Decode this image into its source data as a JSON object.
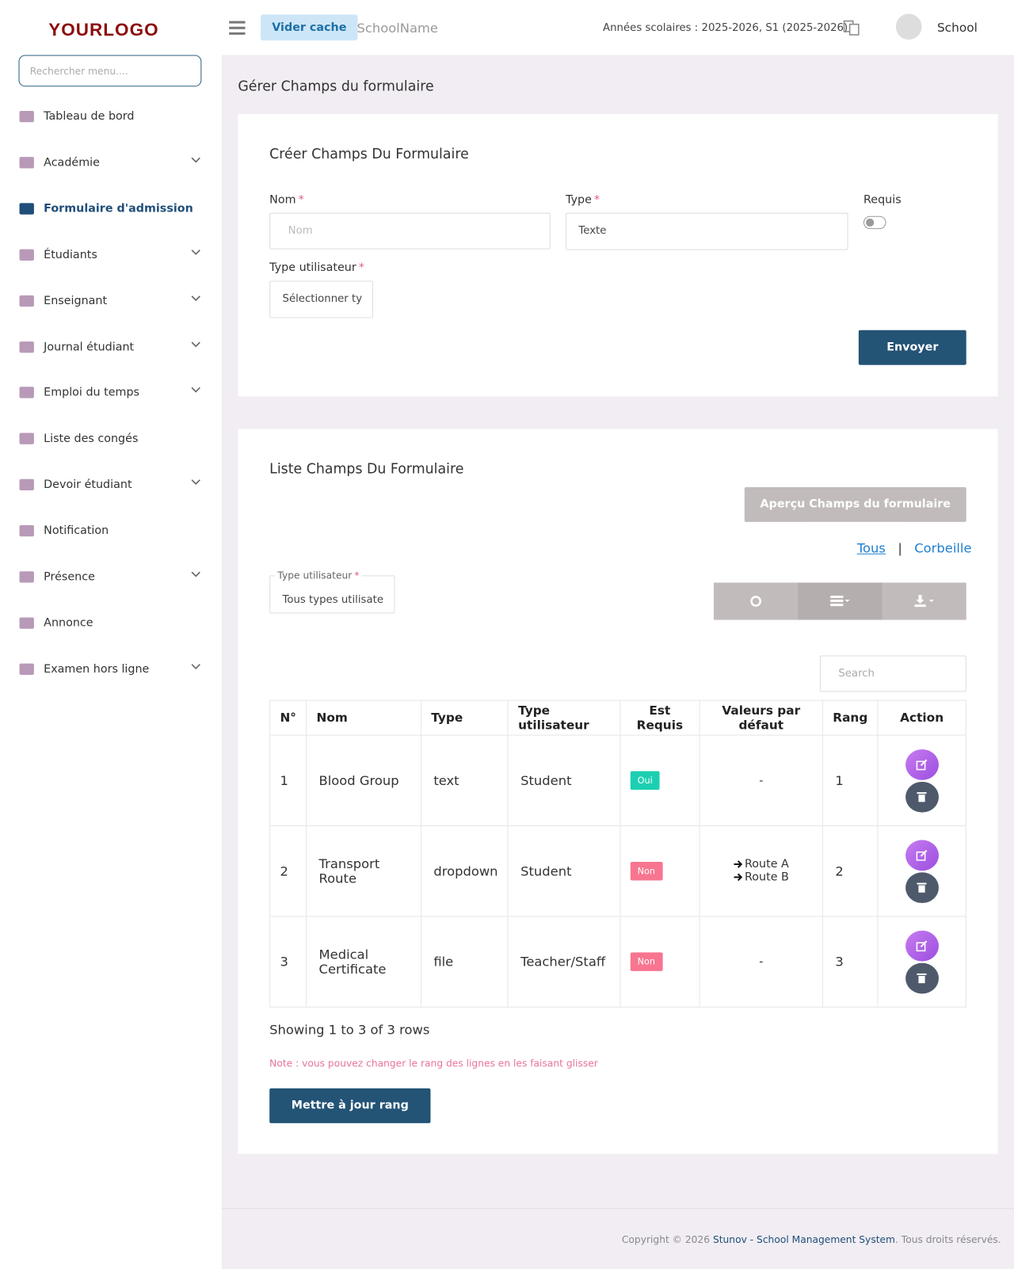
{
  "header": {
    "logo": "YOURLOGO",
    "clear_cache": "Vider cache",
    "school_name": "SchoolName",
    "years": "Années scolaires : 2025-2026, S1 (2025-2026)",
    "user": "School"
  },
  "sidebar": {
    "search_placeholder": "Rechercher menu....",
    "items": [
      {
        "label": "Tableau de bord",
        "submenu": false
      },
      {
        "label": "Académie",
        "submenu": true
      },
      {
        "label": "Formulaire d'admission",
        "submenu": false,
        "active": true
      },
      {
        "label": "Étudiants",
        "submenu": true
      },
      {
        "label": "Enseignant",
        "submenu": true
      },
      {
        "label": "Journal étudiant",
        "submenu": true
      },
      {
        "label": "Emploi du temps",
        "submenu": true
      },
      {
        "label": "Liste des congés",
        "submenu": false
      },
      {
        "label": "Devoir étudiant",
        "submenu": true
      },
      {
        "label": "Notification",
        "submenu": false
      },
      {
        "label": "Présence",
        "submenu": true
      },
      {
        "label": "Annonce",
        "submenu": false
      },
      {
        "label": "Examen hors ligne",
        "submenu": true
      }
    ]
  },
  "page_title": "Gérer Champs du formulaire",
  "required_mark": "*",
  "create_form": {
    "title": "Créer Champs Du Formulaire",
    "name_label": "Nom",
    "name_placeholder": "Nom",
    "type_label": "Type",
    "type_value": "Texte",
    "required_label": "Requis",
    "user_type_label": "Type utilisateur",
    "user_type_value": "Sélectionner ty",
    "submit": "Envoyer"
  },
  "list": {
    "title": "Liste Champs Du Formulaire",
    "preview_button": "Aperçu Champs du formulaire",
    "tabs": [
      "Tous",
      "Corbeille"
    ],
    "tab_separator": "|",
    "filter_label": "Type utilisateur",
    "filter_value": "Tous types utilisate",
    "search_placeholder": "Search",
    "columns": [
      "N°",
      "Nom",
      "Type",
      "Type utilisateur",
      "Est Requis",
      "Valeurs par défaut",
      "Rang",
      "Action"
    ],
    "rows": [
      {
        "no": 1,
        "name": "Blood Group",
        "type": "text",
        "user_type": "Student",
        "required": true,
        "required_label": "Oui",
        "defaults": "-",
        "rank": 1
      },
      {
        "no": 2,
        "name": "Transport Route",
        "type": "dropdown",
        "user_type": "Student",
        "required": false,
        "required_label": "Non",
        "defaults": [
          "Route A",
          "Route B"
        ],
        "rank": 2
      },
      {
        "no": 3,
        "name": "Medical Certificate",
        "type": "file",
        "user_type": "Teacher/Staff",
        "required": false,
        "required_label": "Non",
        "defaults": "-",
        "rank": 3
      }
    ],
    "summary": "Showing 1 to 3 of 3 rows",
    "note": "Note : vous pouvez changer le rang des lignes en les faisant glisser",
    "update_button": "Mettre à jour rang"
  },
  "footer": {
    "copyright": "Copyright © 2026",
    "company": "Stunov - School Management System",
    "rights": ". Tous droits réservés."
  }
}
